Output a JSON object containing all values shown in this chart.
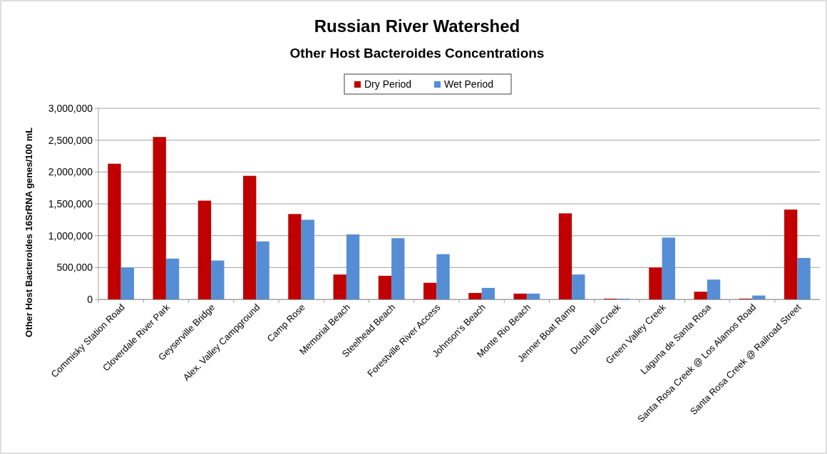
{
  "chart_data": {
    "type": "bar",
    "title": "Russian River Watershed",
    "subtitle": "Other Host Bacteroides Concentrations",
    "ylabel": "Other Host Bacteroides 16SrRNA genes/100 mL",
    "categories": [
      "Commisky Station Road",
      "Cloverdale River Park",
      "Geyserville Bridge",
      "Alex. Valley Campground",
      "Camp Rose",
      "Memorial Beach",
      "Steelhead Beach",
      "Forestville River Access",
      "Johnson's Beach",
      "Monte Rio Beach",
      "Jenner Boat Ramp",
      "Dutch Bill Creek",
      "Green Valley Creek",
      "Laguna de Santa Rosa",
      "Santa Rosa Creek @ Los Alamos Road",
      "Santa Rosa Creek @ Railroad Street"
    ],
    "series": [
      {
        "name": "Dry Period",
        "color": "#c00000",
        "values": [
          2130000,
          2550000,
          1550000,
          1940000,
          1340000,
          390000,
          370000,
          260000,
          100000,
          90000,
          1350000,
          10000,
          500000,
          120000,
          10000,
          1410000
        ]
      },
      {
        "name": "Wet Period",
        "color": "#558ed5",
        "values": [
          500000,
          640000,
          610000,
          910000,
          1250000,
          1020000,
          960000,
          710000,
          180000,
          90000,
          390000,
          10000,
          970000,
          310000,
          60000,
          650000
        ]
      }
    ],
    "ylim": [
      0,
      3000000
    ],
    "yticks": [
      {
        "value": 0,
        "label": "0"
      },
      {
        "value": 500000,
        "label": "500,000"
      },
      {
        "value": 1000000,
        "label": "1,000,000"
      },
      {
        "value": 1500000,
        "label": "1,500,000"
      },
      {
        "value": 2000000,
        "label": "2,000,000"
      },
      {
        "value": 2500000,
        "label": "2,500,000"
      },
      {
        "value": 3000000,
        "label": "3,000,000"
      }
    ],
    "grid": "y",
    "legend": "top"
  }
}
